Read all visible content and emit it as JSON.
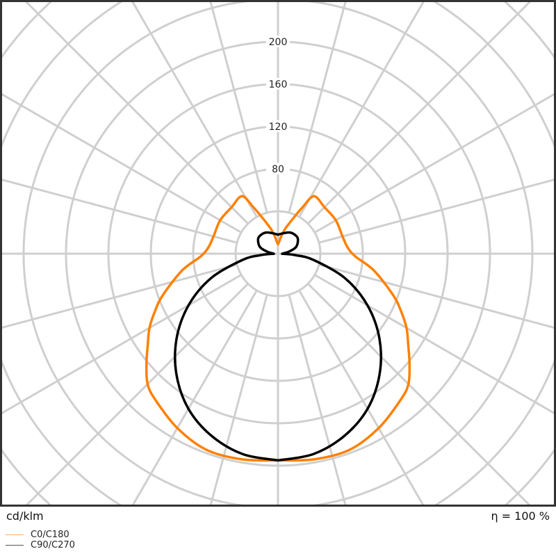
{
  "chart_data": {
    "type": "polar",
    "unit_label": "cd/klm",
    "efficiency_label": "η = 100 %",
    "radial_ticks": [
      80,
      120,
      160,
      200
    ],
    "rings": [
      40,
      80,
      120,
      160,
      200,
      240,
      280,
      320
    ],
    "angle_step_deg": 15,
    "grid": true,
    "legend_placement": "bottom-left",
    "series": [
      {
        "name": "C0/C180",
        "color": "#ff8000",
        "gamma": [
          0,
          10,
          20,
          30,
          40,
          45,
          50,
          55,
          60,
          65,
          70,
          80,
          88,
          95,
          105,
          120,
          135,
          148,
          152,
          156,
          160,
          165,
          170,
          175,
          180
        ],
        "values": [
          195,
          197,
          197,
          190,
          180,
          174,
          162,
          150,
          140,
          128,
          116,
          92,
          73,
          66,
          63,
          63,
          62,
          64,
          50,
          38,
          30,
          23,
          16,
          11,
          9
        ]
      },
      {
        "name": "C90/C270",
        "color": "#000000",
        "gamma": [
          0,
          10,
          20,
          30,
          40,
          50,
          60,
          70,
          80,
          85,
          88,
          90,
          100,
          110,
          125,
          135,
          150,
          165,
          180
        ],
        "values": [
          195,
          192,
          183,
          169,
          149,
          125,
          97.5,
          67,
          34,
          17,
          7,
          4,
          10,
          18,
          23,
          24,
          23,
          20,
          18
        ]
      }
    ]
  }
}
